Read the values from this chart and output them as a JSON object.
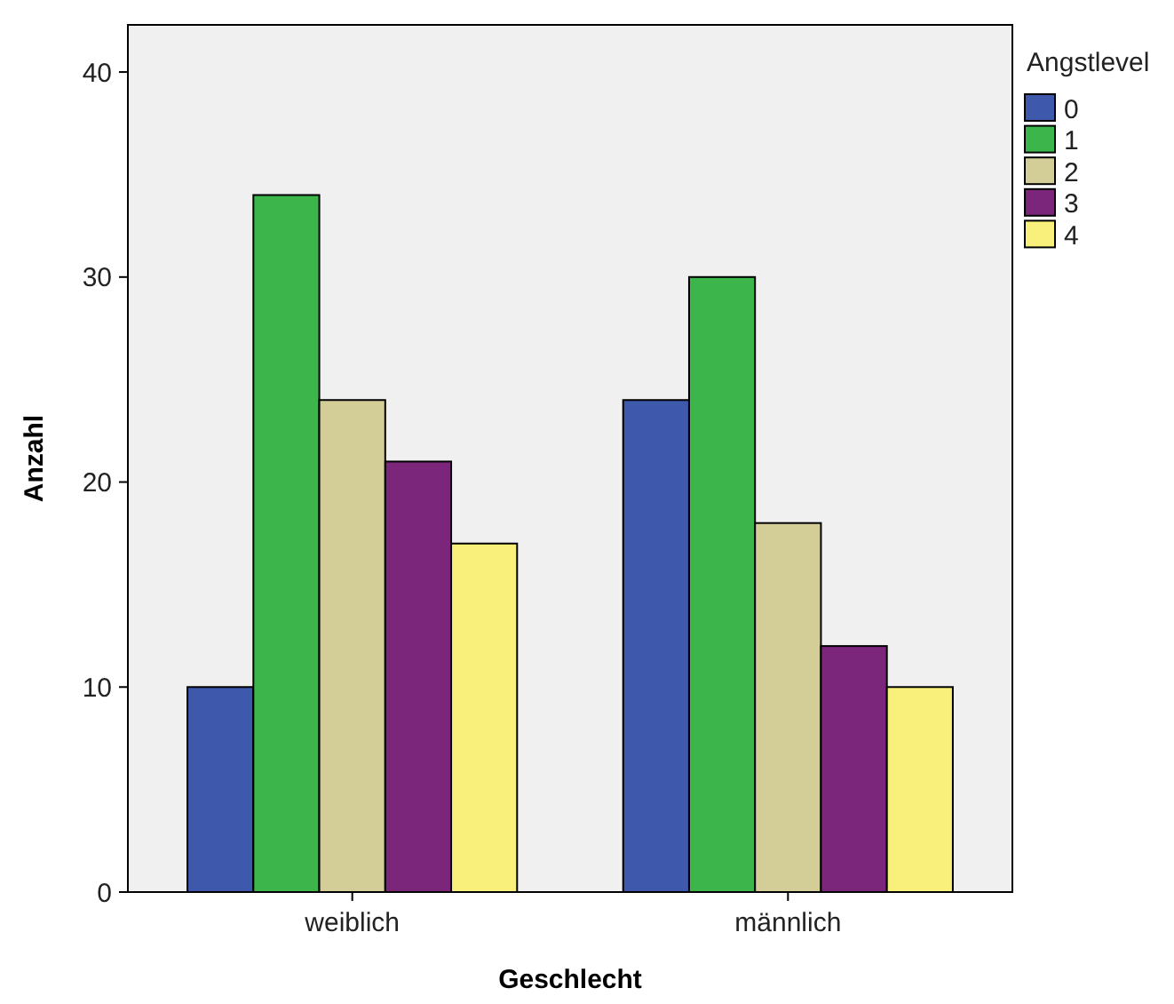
{
  "chart_data": {
    "type": "bar",
    "xlabel": "Geschlecht",
    "ylabel": "Anzahl",
    "legend_title": "Angstlevel",
    "categories": [
      "weiblich",
      "männlich"
    ],
    "series": [
      {
        "name": "0",
        "color": "#3e58ac",
        "values": [
          10,
          24
        ]
      },
      {
        "name": "1",
        "color": "#3cb64a",
        "values": [
          34,
          30
        ]
      },
      {
        "name": "2",
        "color": "#d3ce97",
        "values": [
          24,
          18
        ]
      },
      {
        "name": "3",
        "color": "#7c267b",
        "values": [
          21,
          12
        ]
      },
      {
        "name": "4",
        "color": "#f8f07a",
        "values": [
          17,
          10
        ]
      }
    ],
    "ylim": [
      0,
      42.3
    ],
    "yticks": [
      0,
      10,
      20,
      30,
      40
    ],
    "grid": false,
    "legend": "right"
  }
}
